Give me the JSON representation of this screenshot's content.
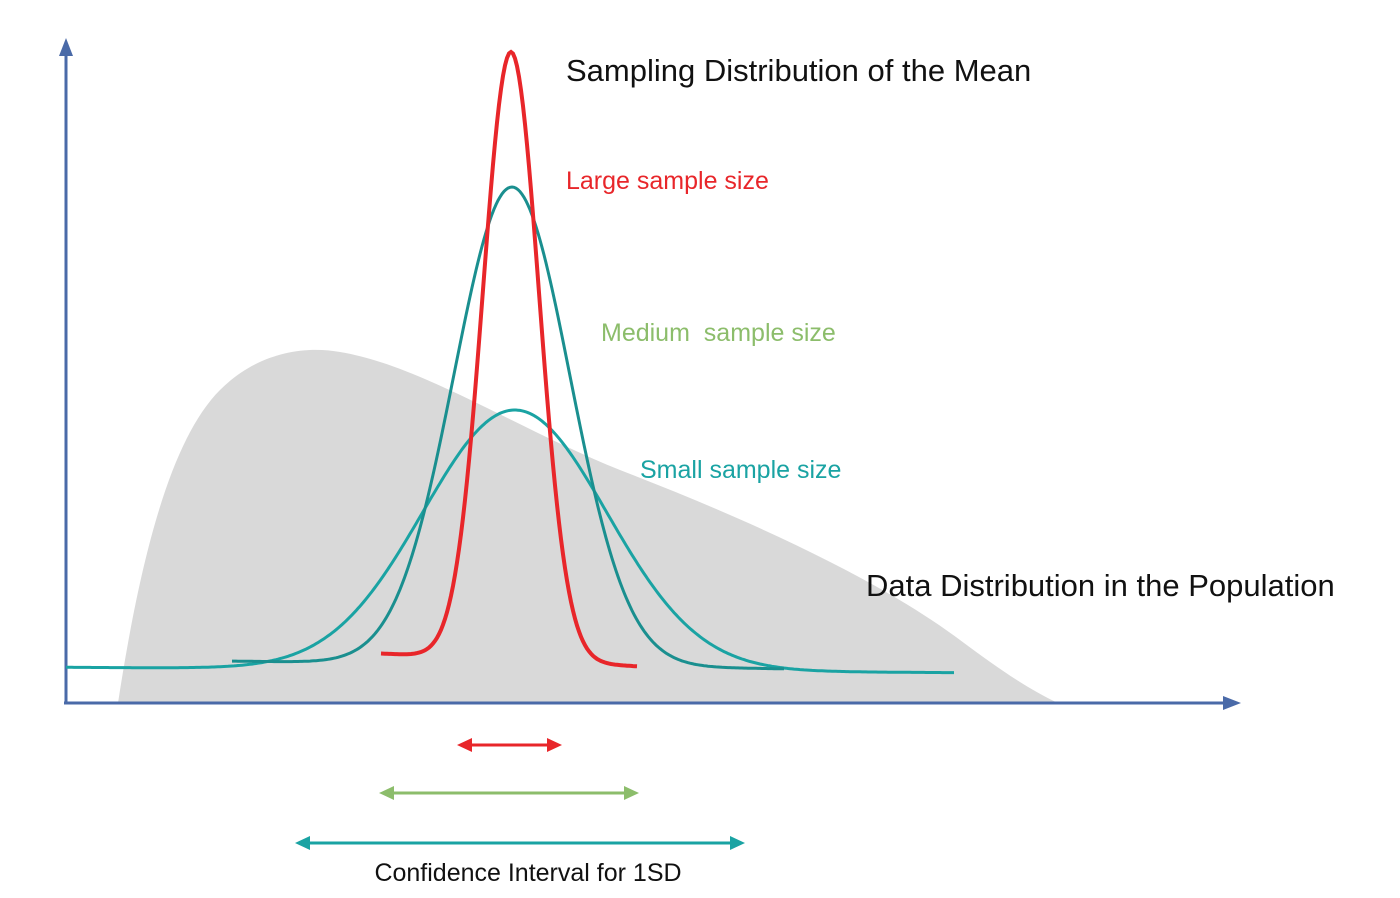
{
  "title": "Sampling Distribution of the Mean",
  "population_label": "Data Distribution in the Population",
  "curves": {
    "large": {
      "label": "Large sample size",
      "color": "#e8262a"
    },
    "medium": {
      "label": "Medium  sample size",
      "color": "#8cbd6b"
    },
    "small": {
      "label": "Small sample size",
      "color": "#1aa3a3"
    }
  },
  "curve_stroke_color": "#1a8f8f",
  "population_fill": "#d9d9d9",
  "axis_color": "#4a6aa8",
  "text_color": "#111111",
  "ci_label": "Confidence Interval for 1SD"
}
